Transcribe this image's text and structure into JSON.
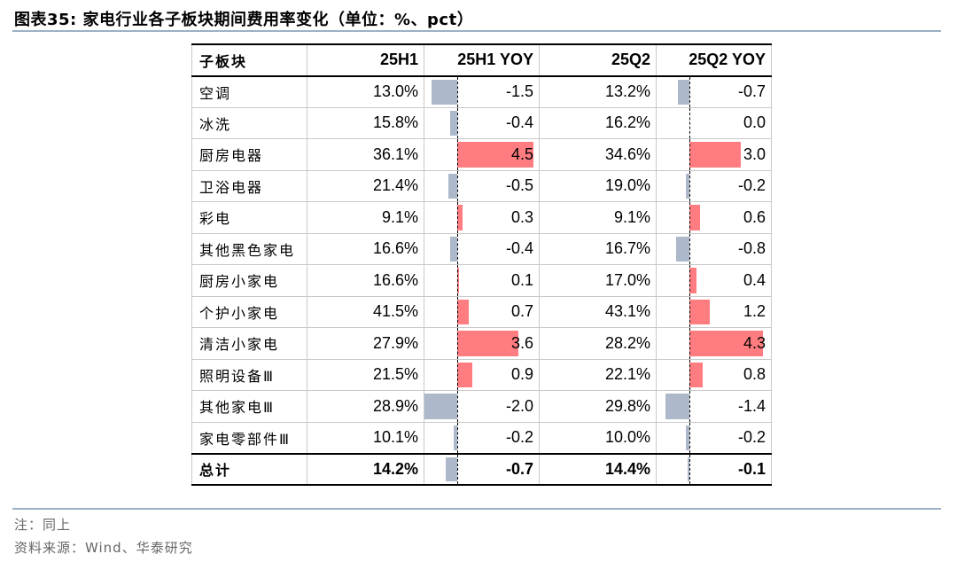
{
  "title": "图表35:  家电行业各子板块期间费用率变化（单位：%、pct）",
  "colors": {
    "positive": "#ff7c80",
    "negative": "#adb9ca",
    "rule": "#9db1c6"
  },
  "table": {
    "headers": [
      "子板块",
      "25H1",
      "25H1 YOY",
      "25Q2",
      "25Q2 YOY"
    ],
    "rows": [
      {
        "name": "空调",
        "h1": "13.0%",
        "h1_yoy": "-1.5",
        "q2": "13.2%",
        "q2_yoy": "-0.7"
      },
      {
        "name": "冰洗",
        "h1": "15.8%",
        "h1_yoy": "-0.4",
        "q2": "16.2%",
        "q2_yoy": "0.0"
      },
      {
        "name": "厨房电器",
        "h1": "36.1%",
        "h1_yoy": "4.5",
        "q2": "34.6%",
        "q2_yoy": "3.0"
      },
      {
        "name": "卫浴电器",
        "h1": "21.4%",
        "h1_yoy": "-0.5",
        "q2": "19.0%",
        "q2_yoy": "-0.2"
      },
      {
        "name": "彩电",
        "h1": "9.1%",
        "h1_yoy": "0.3",
        "q2": "9.1%",
        "q2_yoy": "0.6"
      },
      {
        "name": "其他黑色家电",
        "h1": "16.6%",
        "h1_yoy": "-0.4",
        "q2": "16.7%",
        "q2_yoy": "-0.8"
      },
      {
        "name": "厨房小家电",
        "h1": "16.6%",
        "h1_yoy": "0.1",
        "q2": "17.0%",
        "q2_yoy": "0.4"
      },
      {
        "name": "个护小家电",
        "h1": "41.5%",
        "h1_yoy": "0.7",
        "q2": "43.1%",
        "q2_yoy": "1.2"
      },
      {
        "name": "清洁小家电",
        "h1": "27.9%",
        "h1_yoy": "3.6",
        "q2": "28.2%",
        "q2_yoy": "4.3"
      },
      {
        "name": "照明设备Ⅲ",
        "h1": "21.5%",
        "h1_yoy": "0.9",
        "q2": "22.1%",
        "q2_yoy": "0.8"
      },
      {
        "name": "其他家电Ⅲ",
        "h1": "28.9%",
        "h1_yoy": "-2.0",
        "q2": "29.8%",
        "q2_yoy": "-1.4"
      },
      {
        "name": "家电零部件Ⅲ",
        "h1": "10.1%",
        "h1_yoy": "-0.2",
        "q2": "10.0%",
        "q2_yoy": "-0.2"
      }
    ],
    "total": {
      "name": "总计",
      "h1": "14.2%",
      "h1_yoy": "-0.7",
      "q2": "14.4%",
      "q2_yoy": "-0.1"
    }
  },
  "footnotes": {
    "note": "注：同上",
    "source": "资料来源：Wind、华泰研究"
  }
}
